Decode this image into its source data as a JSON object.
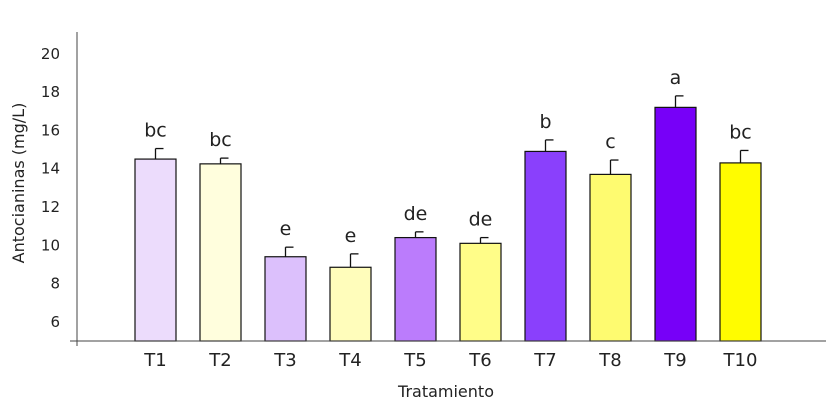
{
  "chart_data": {
    "type": "bar",
    "title": "",
    "xlabel": "Tratamiento",
    "ylabel": "Antocianinas (mg/L)",
    "ylim": [
      5,
      21
    ],
    "yticks": [
      6,
      8,
      10,
      12,
      14,
      16,
      18,
      20
    ],
    "grid": false,
    "categories": [
      "T1",
      "T2",
      "T3",
      "T4",
      "T5",
      "T6",
      "T7",
      "T8",
      "T9",
      "T10"
    ],
    "values": [
      14.5,
      14.25,
      9.4,
      8.85,
      10.4,
      10.1,
      14.9,
      13.7,
      17.2,
      14.3
    ],
    "errors": [
      0.55,
      0.3,
      0.5,
      0.7,
      0.3,
      0.3,
      0.6,
      0.75,
      0.6,
      0.65
    ],
    "significance": [
      "bc",
      "bc",
      "e",
      "e",
      "de",
      "de",
      "b",
      "c",
      "a",
      "bc"
    ],
    "bar_colors": [
      "#ecdcfc",
      "#fffedd",
      "#dcc0fc",
      "#fffdbb",
      "#bb7cfc",
      "#fffd88",
      "#8a40fc",
      "#fefb70",
      "#7700f8",
      "#fffc00"
    ]
  }
}
